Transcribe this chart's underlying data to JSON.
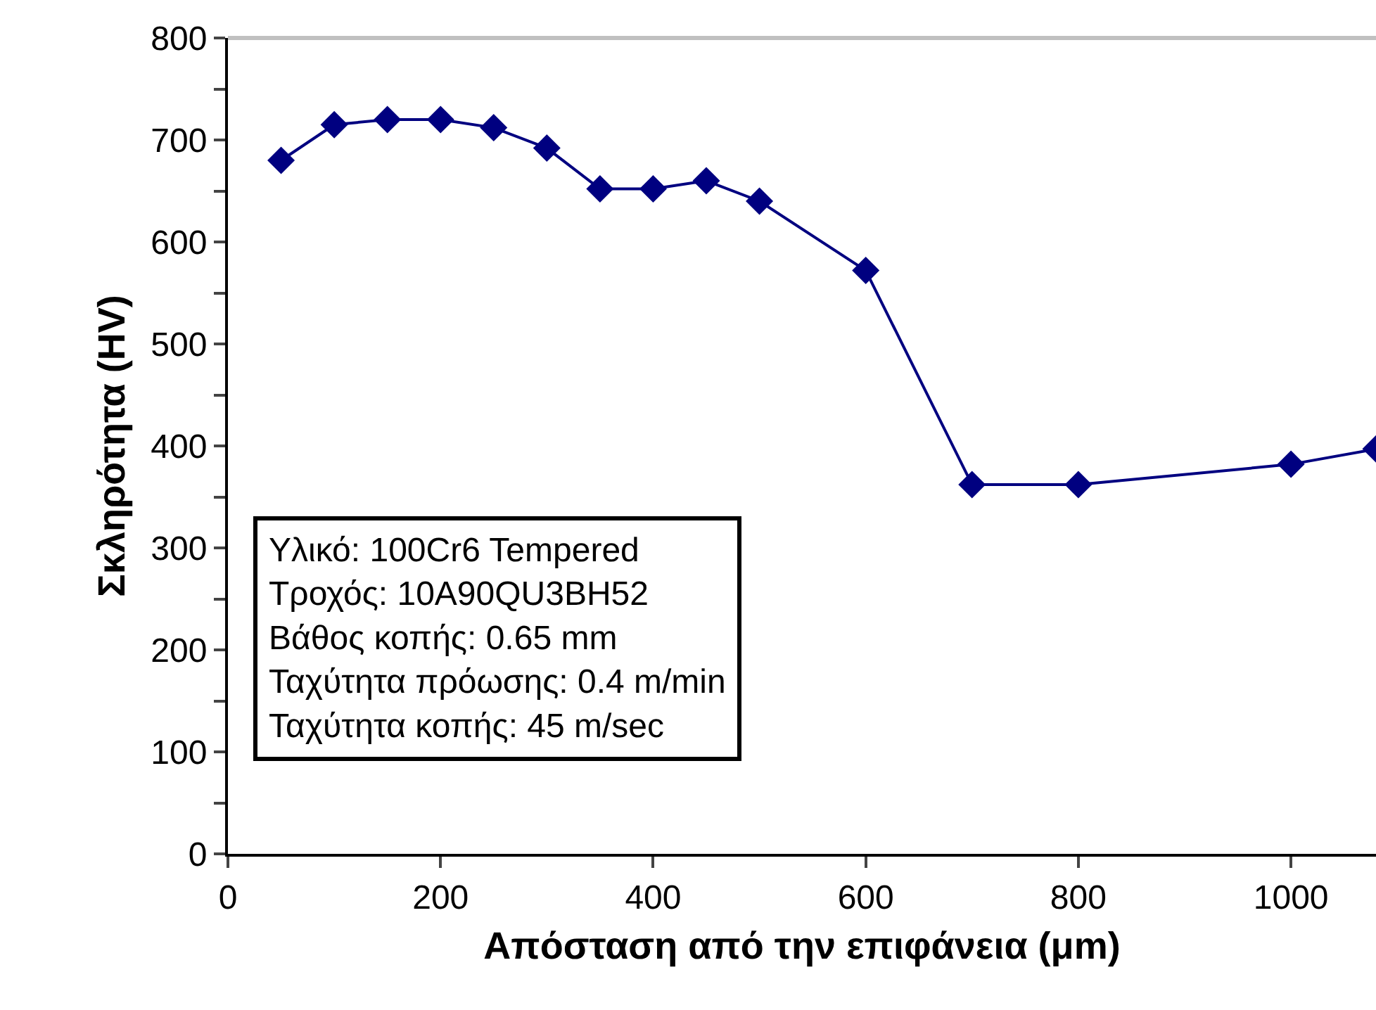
{
  "chart_data": {
    "type": "line",
    "xlabel": "Απόσταση από την επιφάνεια (μm)",
    "ylabel": "Σκληρότητα (HV)",
    "x": [
      50,
      100,
      150,
      200,
      250,
      300,
      350,
      400,
      450,
      500,
      600,
      700,
      800,
      1000,
      1080
    ],
    "series": [
      {
        "color": "#000080",
        "values": [
          680,
          715,
          720,
          720,
          712,
          692,
          652,
          652,
          660,
          640,
          572,
          362,
          362,
          382,
          397
        ]
      }
    ],
    "xlim": [
      0,
      1080
    ],
    "xticks": [
      0,
      200,
      400,
      600,
      800,
      1000
    ],
    "ylim": [
      0,
      800
    ],
    "yticks": [
      0,
      {
        "value": 50,
        "label": null
      },
      100,
      {
        "value": 150,
        "label": null
      },
      200,
      {
        "value": 250,
        "label": null
      },
      300,
      {
        "value": 350,
        "label": null
      },
      400,
      {
        "value": 450,
        "label": null
      },
      500,
      {
        "value": 550,
        "label": null
      },
      600,
      {
        "value": 650,
        "label": null
      },
      700,
      {
        "value": 750,
        "label": null
      },
      800
    ],
    "marker": "diamond",
    "line_style": "solid",
    "annotations": [
      "Υλικό: 100Cr6 Tempered",
      "Τροχός: 10A90QU3BH52",
      "Βάθος κοπής: 0.65 mm",
      "Ταχύτητα πρόωσης: 0.4 m/min",
      "Ταχύτητα κοπής: 45 m/sec"
    ]
  }
}
